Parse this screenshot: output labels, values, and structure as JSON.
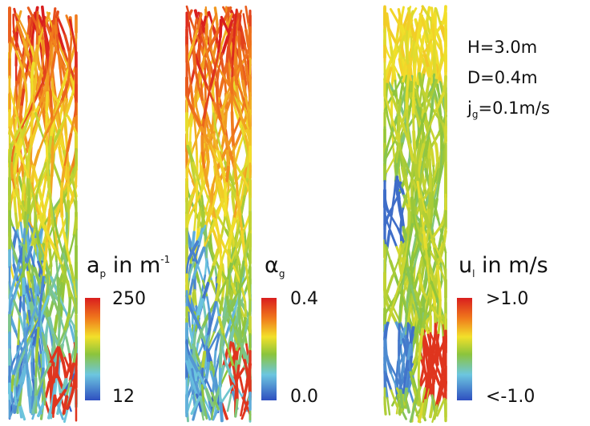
{
  "parameters": [
    {
      "symbol": "H",
      "value": "=3.0m"
    },
    {
      "symbol": "D",
      "value": "=0.4m"
    },
    {
      "symbol": "j",
      "subscript": "g",
      "value": "=0.1m/s"
    }
  ],
  "colorbars": [
    {
      "symbol": "a",
      "subscript": "p",
      "unit": " in m",
      "superscript": "-1",
      "max_label": "250",
      "min_label": "12"
    },
    {
      "symbol": "α",
      "subscript": "g",
      "max_label": "0.4",
      "min_label": "0.0"
    },
    {
      "symbol": "u",
      "subscript": "l",
      "unit": " in m/s",
      "max_label": ">1.0",
      "min_label": "<-1.0"
    }
  ]
}
